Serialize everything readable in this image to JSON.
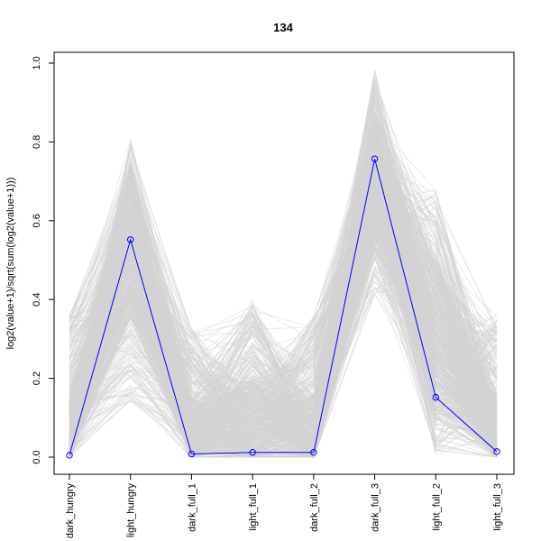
{
  "chart_data": {
    "type": "line",
    "title": "134",
    "xlabel": "",
    "ylabel": "log2(value+1)/sqrt(sum(log2(value+1)))",
    "categories": [
      "dark_hungry",
      "light_hungry",
      "dark_full_1",
      "light_full_1",
      "dark_full_2",
      "dark_full_3",
      "light_full_2",
      "light_full_3"
    ],
    "ylim": [
      0,
      1.0
    ],
    "yticks": [
      0.0,
      0.2,
      0.4,
      0.6,
      0.8,
      1.0
    ],
    "ytick_labels": [
      "0.0",
      "0.2",
      "0.4",
      "0.6",
      "0.8",
      "1.0"
    ],
    "grid": false,
    "series": [
      {
        "values": [
          0.005,
          0.552,
          0.008,
          0.012,
          0.012,
          0.757,
          0.152,
          0.014
        ],
        "color": "#0000ff",
        "marker": "open-circle"
      }
    ],
    "background_profiles": {
      "color": "#d3d3d3",
      "count_approx": 600,
      "ranges": [
        [
          0.0,
          0.36
        ],
        [
          0.14,
          0.81
        ],
        [
          0.0,
          0.33
        ],
        [
          0.0,
          0.4
        ],
        [
          0.0,
          0.36
        ],
        [
          0.4,
          0.99
        ],
        [
          0.0,
          0.68
        ],
        [
          0.0,
          0.36
        ]
      ],
      "typical": [
        0.05,
        0.55,
        0.05,
        0.08,
        0.05,
        0.7,
        0.3,
        0.05
      ]
    }
  }
}
